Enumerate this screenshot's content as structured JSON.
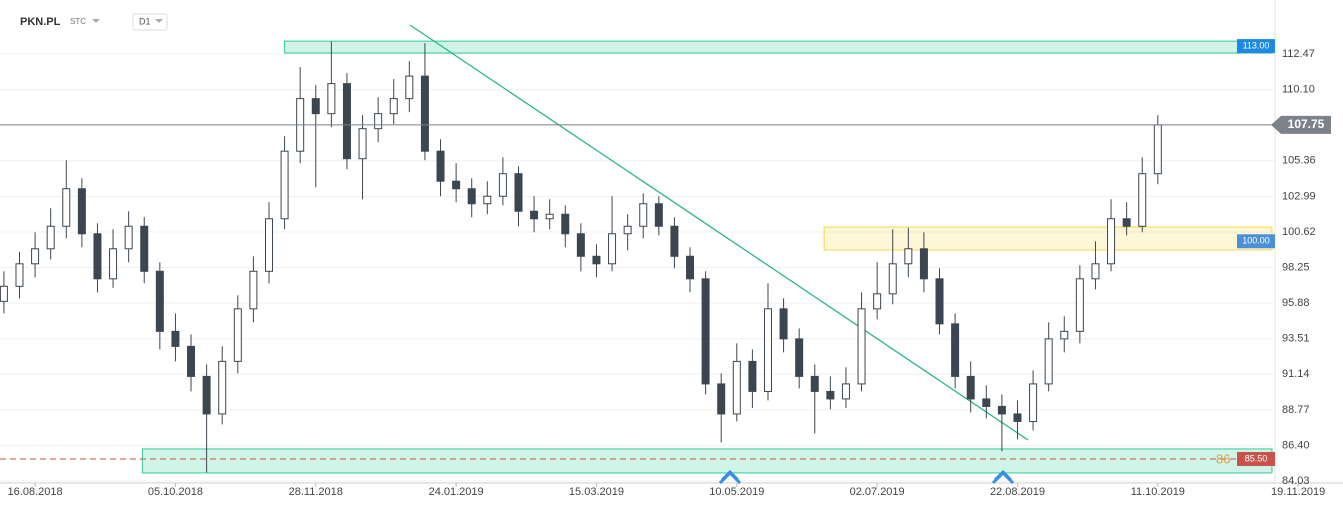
{
  "chart_data": {
    "type": "candlestick",
    "symbol": "PKN.PL",
    "style": "STC",
    "interval": "D1",
    "x": [
      -8,
      -4,
      0,
      4,
      8,
      12,
      16,
      20,
      24,
      28,
      32,
      36,
      40,
      44,
      48,
      52,
      56,
      60,
      64,
      68,
      72,
      76,
      80,
      84,
      88,
      92,
      96,
      100,
      104,
      108,
      112,
      116,
      120,
      124,
      128,
      132,
      136,
      140,
      144,
      148,
      152,
      156,
      160,
      164,
      168,
      172,
      176,
      180,
      184,
      188,
      192,
      196,
      200,
      204,
      208,
      212,
      216,
      220,
      224,
      228,
      232,
      236,
      240,
      244,
      248,
      252,
      256,
      260,
      264,
      268,
      272,
      276,
      280,
      284,
      288
    ],
    "candles": [
      [
        96.0,
        98.0,
        95.2,
        97.0
      ],
      [
        97.0,
        99.3,
        96.2,
        98.5
      ],
      [
        98.5,
        100.6,
        97.6,
        99.5
      ],
      [
        99.5,
        102.2,
        98.8,
        101.0
      ],
      [
        101.0,
        105.4,
        100.2,
        103.5
      ],
      [
        103.5,
        104.2,
        99.6,
        100.5
      ],
      [
        100.5,
        101.2,
        96.6,
        97.5
      ],
      [
        97.5,
        100.8,
        96.9,
        99.5
      ],
      [
        99.5,
        102.0,
        98.6,
        101.0
      ],
      [
        101.0,
        101.6,
        97.2,
        98.0
      ],
      [
        98.0,
        98.6,
        92.8,
        94.0
      ],
      [
        94.0,
        95.2,
        92.0,
        93.0
      ],
      [
        93.0,
        93.8,
        90.0,
        91.0
      ],
      [
        91.0,
        91.8,
        84.6,
        88.5
      ],
      [
        88.5,
        93.0,
        87.8,
        92.0
      ],
      [
        92.0,
        96.4,
        91.2,
        95.5
      ],
      [
        95.5,
        99.0,
        94.6,
        98.0
      ],
      [
        98.0,
        102.6,
        97.2,
        101.5
      ],
      [
        101.5,
        107.0,
        100.8,
        106.0
      ],
      [
        106.0,
        111.6,
        105.2,
        109.5
      ],
      [
        109.5,
        110.4,
        103.6,
        108.5
      ],
      [
        108.5,
        113.3,
        107.6,
        110.5
      ],
      [
        110.5,
        111.2,
        104.8,
        105.5
      ],
      [
        105.5,
        108.4,
        102.8,
        107.5
      ],
      [
        107.5,
        109.6,
        106.6,
        108.5
      ],
      [
        108.5,
        110.8,
        107.8,
        109.5
      ],
      [
        109.5,
        112.0,
        108.6,
        111.0
      ],
      [
        111.0,
        113.2,
        105.4,
        106.0
      ],
      [
        106.0,
        106.8,
        103.0,
        104.0
      ],
      [
        104.0,
        105.2,
        102.6,
        103.5
      ],
      [
        103.5,
        104.2,
        101.6,
        102.5
      ],
      [
        102.5,
        104.0,
        101.8,
        103.0
      ],
      [
        103.0,
        105.6,
        102.4,
        104.5
      ],
      [
        104.5,
        105.0,
        101.0,
        102.0
      ],
      [
        102.0,
        103.0,
        100.6,
        101.5
      ],
      [
        101.5,
        102.8,
        100.8,
        101.8
      ],
      [
        101.8,
        102.4,
        99.6,
        100.5
      ],
      [
        100.5,
        101.2,
        98.0,
        99.0
      ],
      [
        99.0,
        99.8,
        97.6,
        98.5
      ],
      [
        98.5,
        103.0,
        98.0,
        100.5
      ],
      [
        100.5,
        101.8,
        99.4,
        101.0
      ],
      [
        101.0,
        103.2,
        100.2,
        102.5
      ],
      [
        102.5,
        103.0,
        100.4,
        101.0
      ],
      [
        101.0,
        101.6,
        98.2,
        99.0
      ],
      [
        99.0,
        99.6,
        96.6,
        97.5
      ],
      [
        97.5,
        98.0,
        89.8,
        90.5
      ],
      [
        90.5,
        91.2,
        86.6,
        88.5
      ],
      [
        88.5,
        93.2,
        88.0,
        92.0
      ],
      [
        92.0,
        92.8,
        88.9,
        90.0
      ],
      [
        90.0,
        97.2,
        89.4,
        95.5
      ],
      [
        95.5,
        96.2,
        92.6,
        93.5
      ],
      [
        93.5,
        94.2,
        90.2,
        91.0
      ],
      [
        91.0,
        91.8,
        87.2,
        90.0
      ],
      [
        90.0,
        91.0,
        88.8,
        89.5
      ],
      [
        89.5,
        91.6,
        88.9,
        90.5
      ],
      [
        90.5,
        96.6,
        90.0,
        95.5
      ],
      [
        95.5,
        98.6,
        94.8,
        96.5
      ],
      [
        96.5,
        100.8,
        95.8,
        98.5
      ],
      [
        98.5,
        100.9,
        97.6,
        99.5
      ],
      [
        99.5,
        100.6,
        96.6,
        97.5
      ],
      [
        97.5,
        98.2,
        93.8,
        94.5
      ],
      [
        94.5,
        95.2,
        90.2,
        91.0
      ],
      [
        91.0,
        92.0,
        88.6,
        89.5
      ],
      [
        89.5,
        90.4,
        88.2,
        89.0
      ],
      [
        89.0,
        89.8,
        86.0,
        88.5
      ],
      [
        88.5,
        89.4,
        86.8,
        88.0
      ],
      [
        88.0,
        91.4,
        87.4,
        90.5
      ],
      [
        90.5,
        94.6,
        90.0,
        93.5
      ],
      [
        93.5,
        95.0,
        92.6,
        94.0
      ],
      [
        94.0,
        98.4,
        93.2,
        97.5
      ],
      [
        97.5,
        100.0,
        96.8,
        98.5
      ],
      [
        98.5,
        102.8,
        98.0,
        101.5
      ],
      [
        101.5,
        102.6,
        100.4,
        101.0
      ],
      [
        101.0,
        105.6,
        100.6,
        104.5
      ],
      [
        104.5,
        108.4,
        103.8,
        107.75
      ]
    ],
    "up_color": "#ffffff",
    "down_color": "#3c4650",
    "xlim": [
      -9,
      335.5
    ],
    "xticks": [
      {
        "value": 0,
        "label": "16.08.2018"
      },
      {
        "value": 36,
        "label": "05.10.2018"
      },
      {
        "value": 72,
        "label": "28.11.2018"
      },
      {
        "value": 108,
        "label": "24.01.2019"
      },
      {
        "value": 144,
        "label": "15.03.2019"
      },
      {
        "value": 180,
        "label": "10.05.2019"
      },
      {
        "value": 216,
        "label": "02.07.2019"
      },
      {
        "value": 252,
        "label": "22.08.2019"
      },
      {
        "value": 288,
        "label": "11.10.2019"
      },
      {
        "value": 324,
        "label": "19.11.2019"
      }
    ],
    "ylim": [
      83.9,
      116.07
    ],
    "yticks": [
      112.47,
      {
        "value": 110.1,
        "label": "110.10"
      },
      105.36,
      102.99,
      100.62,
      98.25,
      95.88,
      93.51,
      91.14,
      88.77,
      {
        "value": 86.4,
        "label": "86.40"
      },
      84.03
    ],
    "grid": true,
    "zones": [
      {
        "start": 64,
        "low": 112.54,
        "high": 113.33,
        "color": "#2ecc9a"
      },
      {
        "start": 202.4,
        "low": 99.42,
        "high": 100.95,
        "color": "#f5d94a"
      },
      {
        "start": 27.5,
        "low": 84.57,
        "high": 86.17,
        "color": "#2ecc9a"
      }
    ],
    "levels": [
      {
        "value": 113,
        "label": "113.00",
        "color": "#1e88e5"
      },
      {
        "value": 100,
        "label": "100.00",
        "color": "#4a90d9"
      },
      {
        "value": 85.5,
        "label": "85.50",
        "color": "#c9534b"
      }
    ],
    "alert_label": "86",
    "last_price": 107.75
  }
}
